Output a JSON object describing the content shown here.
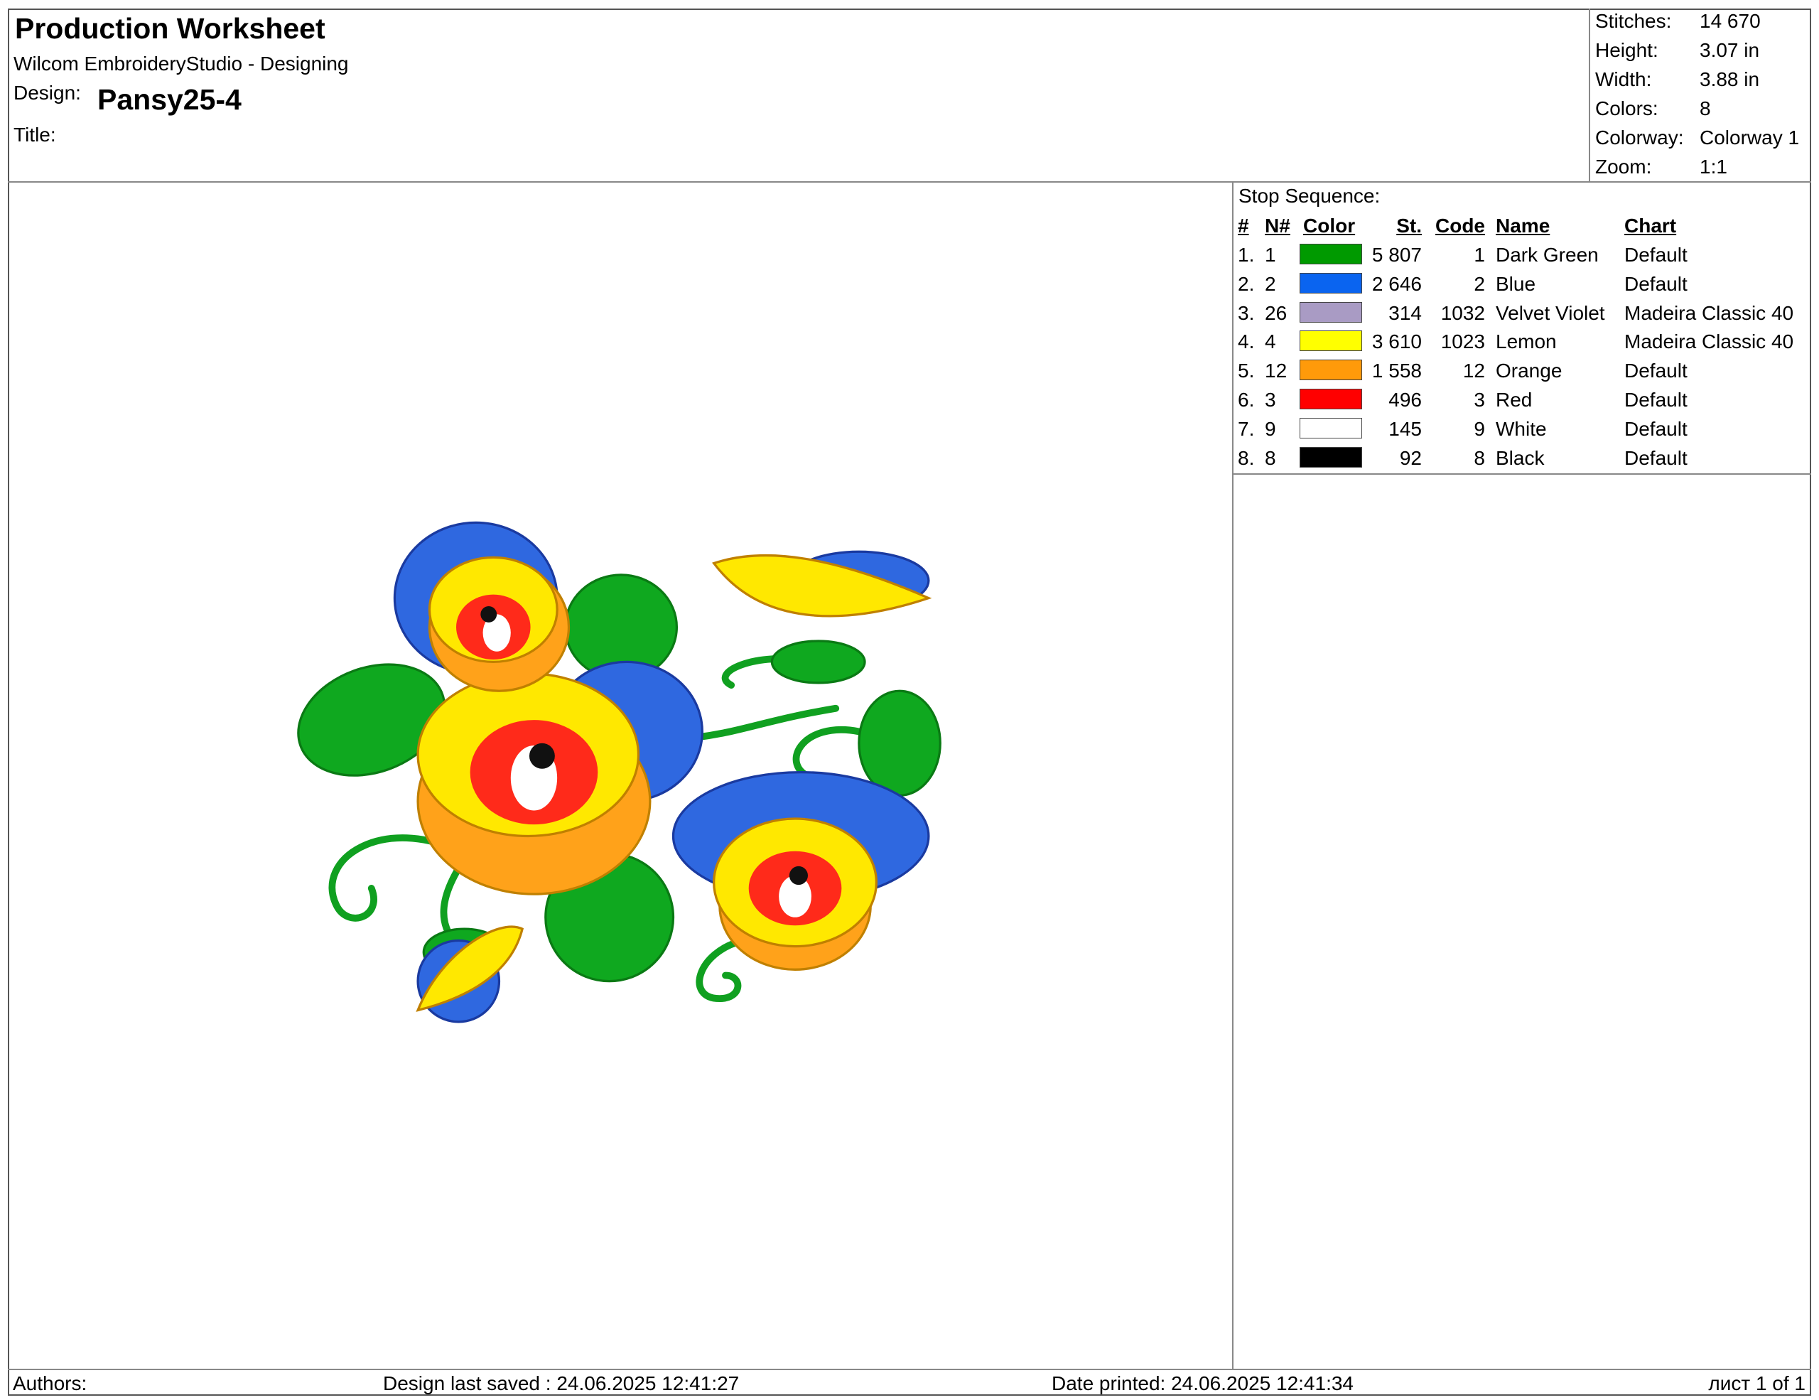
{
  "header": {
    "title": "Production Worksheet",
    "subtitle": "Wilcom EmbroideryStudio - Designing",
    "design_label": "Design:",
    "design_name": "Pansy25-4",
    "title_label": "Title:"
  },
  "stats": [
    {
      "label": "Stitches:",
      "value": "14 670"
    },
    {
      "label": "Height:",
      "value": "3.07 in"
    },
    {
      "label": "Width:",
      "value": "3.88 in"
    },
    {
      "label": "Colors:",
      "value": "8"
    },
    {
      "label": "Colorway:",
      "value": "Colorway 1"
    },
    {
      "label": "Zoom:",
      "value": "1:1"
    }
  ],
  "stop_sequence": {
    "title": "Stop Sequence:",
    "columns": [
      "#",
      "N#",
      "Color",
      "St.",
      "Code",
      "Name",
      "Chart"
    ],
    "rows": [
      {
        "index": "1.",
        "n": "1",
        "color": "#009a00",
        "stitches": "5 807",
        "code": "1",
        "name": "Dark Green",
        "chart": "Default"
      },
      {
        "index": "2.",
        "n": "2",
        "color": "#0a64f0",
        "stitches": "2 646",
        "code": "2",
        "name": "Blue",
        "chart": "Default"
      },
      {
        "index": "3.",
        "n": "26",
        "color": "#a99bc4",
        "stitches": "314",
        "code": "1032",
        "name": "Velvet Violet",
        "chart": "Madeira Classic 40"
      },
      {
        "index": "4.",
        "n": "4",
        "color": "#ffff00",
        "stitches": "3 610",
        "code": "1023",
        "name": "Lemon",
        "chart": "Madeira Classic 40"
      },
      {
        "index": "5.",
        "n": "12",
        "color": "#ff9a0a",
        "stitches": "1 558",
        "code": "12",
        "name": "Orange",
        "chart": "Default"
      },
      {
        "index": "6.",
        "n": "3",
        "color": "#ff0000",
        "stitches": "496",
        "code": "3",
        "name": "Red",
        "chart": "Default"
      },
      {
        "index": "7.",
        "n": "9",
        "color": "#ffffff",
        "stitches": "145",
        "code": "9",
        "name": "White",
        "chart": "Default"
      },
      {
        "index": "8.",
        "n": "8",
        "color": "#000000",
        "stitches": "92",
        "code": "8",
        "name": "Black",
        "chart": "Default"
      }
    ]
  },
  "footer": {
    "authors": "Authors:",
    "saved": "Design last saved : 24.06.2025 12:41:27",
    "printed": "Date printed: 24.06.2025 12:41:34",
    "page": "лист 1 of 1"
  }
}
